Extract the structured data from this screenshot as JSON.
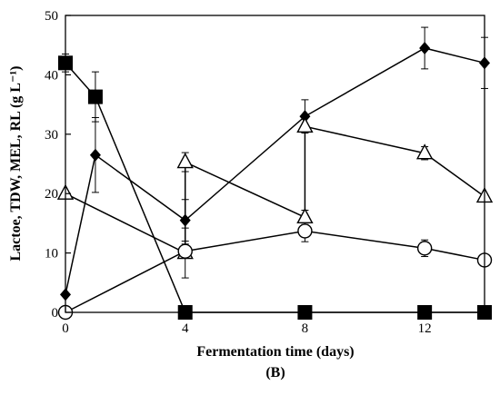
{
  "chart_data": {
    "type": "line",
    "panel_label": "(B)",
    "xlabel": "Fermentation time (days)",
    "ylabel": "Lactoe, TDW, MEL, RL (g L⁻¹)",
    "xlim": [
      0,
      14
    ],
    "ylim": [
      0,
      50
    ],
    "xticks": [
      0,
      4,
      8,
      12
    ],
    "yticks": [
      0,
      10,
      20,
      30,
      40,
      50
    ],
    "grid": false,
    "legend": "none",
    "series": [
      {
        "marker": "square-filled",
        "color": "#000000",
        "points": [
          {
            "x": 0,
            "y": 42,
            "err": 1.5
          },
          {
            "x": 1,
            "y": 36.3,
            "err": 4.2
          },
          {
            "x": 4,
            "y": 0,
            "err": 0
          },
          {
            "x": 8,
            "y": 0,
            "err": 0
          },
          {
            "x": 12,
            "y": 0,
            "err": 0
          },
          {
            "x": 14,
            "y": 0,
            "err": 0
          }
        ]
      },
      {
        "marker": "diamond-filled",
        "color": "#000000",
        "points": [
          {
            "x": 0,
            "y": 3,
            "err": 0
          },
          {
            "x": 1,
            "y": 26.5,
            "err": 6.3
          },
          {
            "x": 4,
            "y": 15.5,
            "err": 3.5
          },
          {
            "x": 8,
            "y": 33,
            "err": 2.8
          },
          {
            "x": 12,
            "y": 44.5,
            "err": 3.5
          },
          {
            "x": 14,
            "y": 42,
            "err": 4.3
          }
        ]
      },
      {
        "marker": "triangle-open",
        "color": "#000000",
        "points": [
          {
            "x": 0,
            "y": 20,
            "err": 0
          },
          {
            "x": 4,
            "y": 10,
            "err": 4.2
          },
          {
            "x": 4,
            "y": 25.3,
            "err": 1.6
          },
          {
            "x": 8,
            "y": 16,
            "err": 1.2
          },
          {
            "x": 8,
            "y": 31.3,
            "err": 0
          },
          {
            "x": 12,
            "y": 26.8,
            "err": 1.1
          },
          {
            "x": 14,
            "y": 19.5,
            "err": 0
          }
        ]
      },
      {
        "marker": "circle-open",
        "color": "#000000",
        "points": [
          {
            "x": 0,
            "y": 0,
            "err": 0
          },
          {
            "x": 4,
            "y": 10.3,
            "err": 1.2
          },
          {
            "x": 8,
            "y": 13.7,
            "err": 1.8
          },
          {
            "x": 12,
            "y": 10.8,
            "err": 1.4
          },
          {
            "x": 14,
            "y": 8.8,
            "err": 0
          }
        ]
      }
    ]
  }
}
